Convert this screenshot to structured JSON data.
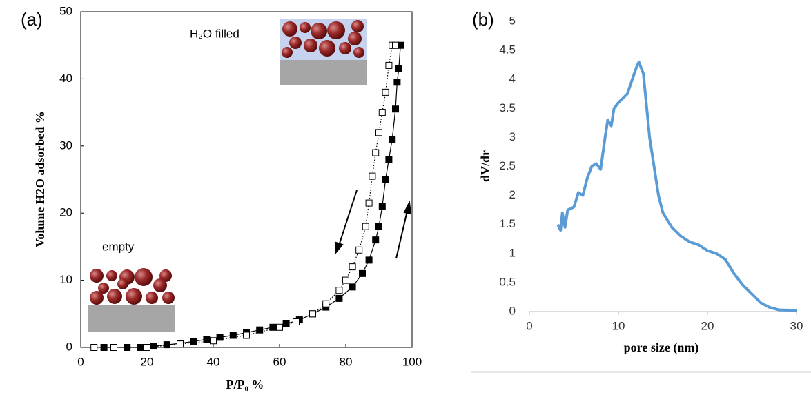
{
  "chart_data": [
    {
      "type": "scatter",
      "panel_label": "(a)",
      "x_label": "P/P₀ %",
      "y_label": "Volume H2O adsorbed %",
      "annotations": [
        "H₂O filled",
        "empty"
      ],
      "xlim": [
        0,
        100
      ],
      "ylim": [
        0,
        50
      ],
      "xticks": [
        0,
        20,
        40,
        60,
        80,
        100
      ],
      "yticks": [
        0,
        10,
        20,
        30,
        40,
        50
      ],
      "series": [
        {
          "color": "#000000",
          "marker": "square-filled",
          "line_style": "solid",
          "x": [
            7,
            10,
            14,
            18,
            22,
            26,
            30,
            34,
            38,
            42,
            46,
            50,
            54,
            58,
            62,
            66,
            70,
            74,
            78,
            82,
            85,
            87,
            89,
            90,
            91,
            92,
            93,
            94,
            95,
            95.5,
            96,
            96.5
          ],
          "values": [
            0,
            0,
            0,
            0,
            0.2,
            0.4,
            0.6,
            0.9,
            1.2,
            1.5,
            1.8,
            2.2,
            2.6,
            3.0,
            3.5,
            4.1,
            5.0,
            6.0,
            7.3,
            9.0,
            11,
            13,
            16,
            18,
            21,
            25,
            28,
            31,
            35.5,
            39.5,
            41.5,
            45
          ]
        },
        {
          "color": "#000000",
          "marker": "square-open",
          "line_style": "dotted",
          "x": [
            4,
            10,
            20,
            30,
            40,
            50,
            60,
            65,
            70,
            74,
            78,
            80,
            82,
            84,
            86,
            87,
            88,
            89,
            90,
            91,
            92,
            93,
            94,
            95
          ],
          "values": [
            0,
            0,
            0,
            0.5,
            1.0,
            1.8,
            3.0,
            3.8,
            5.0,
            6.5,
            8.5,
            10,
            12,
            14.5,
            18,
            21.5,
            25.5,
            29,
            32,
            35,
            38,
            42,
            45,
            45
          ]
        }
      ]
    },
    {
      "type": "line",
      "panel_label": "(b)",
      "x_label": "pore size (nm)",
      "y_label": "dV/dr",
      "xlim": [
        0,
        30
      ],
      "ylim": [
        0,
        5
      ],
      "xticks": [
        0,
        10,
        20,
        30
      ],
      "yticks": [
        0,
        0.5,
        1,
        1.5,
        2,
        2.5,
        3,
        3.5,
        4,
        4.5,
        5
      ],
      "series": [
        {
          "color": "#5b9bd5",
          "x": [
            3.2,
            3.5,
            3.7,
            4,
            4.3,
            5,
            5.5,
            6,
            6.5,
            7,
            7.5,
            8,
            8.5,
            8.8,
            9.2,
            9.5,
            10,
            11,
            12,
            12.3,
            12.8,
            13.5,
            14.5,
            15,
            16,
            17,
            18,
            19,
            20,
            21,
            22,
            23,
            24,
            25,
            26,
            27,
            28,
            30
          ],
          "values": [
            1.5,
            1.4,
            1.7,
            1.45,
            1.75,
            1.8,
            2.05,
            2.0,
            2.3,
            2.5,
            2.55,
            2.45,
            3.0,
            3.3,
            3.2,
            3.5,
            3.6,
            3.75,
            4.2,
            4.3,
            4.1,
            3.0,
            2.0,
            1.7,
            1.45,
            1.3,
            1.2,
            1.15,
            1.05,
            1.0,
            0.9,
            0.65,
            0.45,
            0.3,
            0.15,
            0.07,
            0.03,
            0.02
          ]
        }
      ]
    }
  ]
}
